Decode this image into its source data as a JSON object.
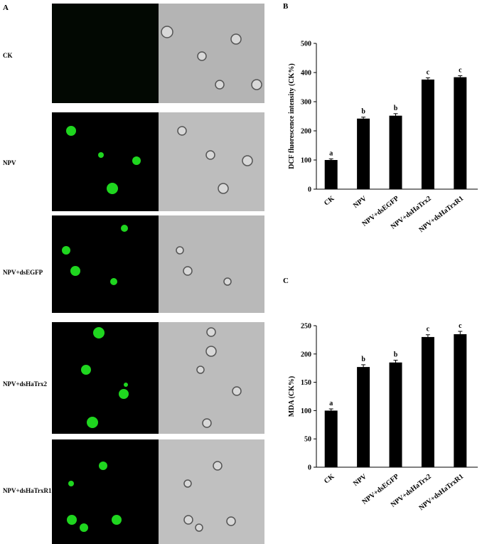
{
  "panels": {
    "a": "A",
    "b": "B",
    "c": "C"
  },
  "rows": [
    "CK",
    "NPV",
    "NPV+dsEGFP",
    "NPV+dsHaTrx2",
    "NPV+dsHaTrxR1"
  ],
  "chart_data": [
    {
      "type": "bar",
      "y_label": "DCF fluorescence intensity (CK%)",
      "categories": [
        "CK",
        "NPV",
        "NPV+dsEGFP",
        "NPV+dsHaTrx2",
        "NPV+dsHaTrxR1"
      ],
      "values": [
        100,
        242,
        252,
        376,
        384
      ],
      "errors": [
        4,
        5,
        7,
        6,
        5
      ],
      "annotations": [
        "a",
        "b",
        "b",
        "c",
        "c"
      ],
      "color": "#000000",
      "ylim": [
        0,
        500
      ],
      "yticks": [
        0,
        100,
        200,
        300,
        400,
        500
      ]
    },
    {
      "type": "bar",
      "y_label": "MDA (CK%)",
      "categories": [
        "CK",
        "NPV",
        "NPV+dsEGFP",
        "NPV+dsHaTrx2",
        "NPV+dsHaTrxR1"
      ],
      "values": [
        100,
        177,
        185,
        230,
        235
      ],
      "errors": [
        3,
        4,
        4,
        4,
        5
      ],
      "annotations": [
        "a",
        "b",
        "b",
        "c",
        "c"
      ],
      "color": "#000000",
      "ylim": [
        0,
        250
      ],
      "yticks": [
        0,
        50,
        100,
        150,
        200,
        250
      ]
    }
  ]
}
